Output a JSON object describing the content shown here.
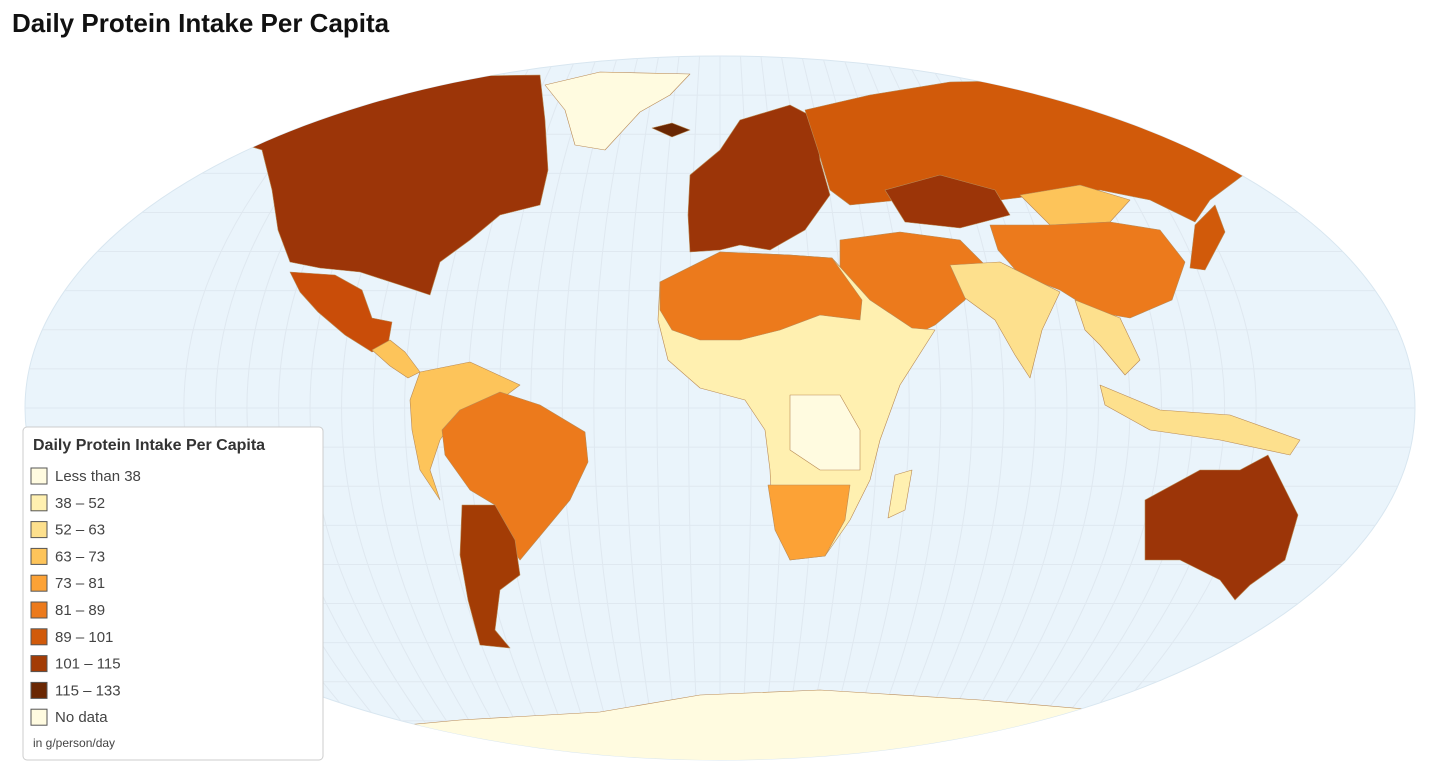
{
  "title": "Daily Protein Intake Per Capita",
  "legend": {
    "title": "Daily Protein Intake Per Capita",
    "items": [
      {
        "label": "Less than 38",
        "color": "#fffbe0"
      },
      {
        "label": "38 – 52",
        "color": "#fff0b0"
      },
      {
        "label": "52 – 63",
        "color": "#fde08d"
      },
      {
        "label": "63 – 73",
        "color": "#fdc45a"
      },
      {
        "label": "73 – 81",
        "color": "#fca236"
      },
      {
        "label": "81 – 89",
        "color": "#ec7a1c"
      },
      {
        "label": "89 – 101",
        "color": "#d15a0a"
      },
      {
        "label": "101 – 115",
        "color": "#a33c05"
      },
      {
        "label": "115 – 133",
        "color": "#6a2703"
      },
      {
        "label": "No data",
        "color": "#fffbe0"
      }
    ],
    "note": "in g/person/day"
  }
}
